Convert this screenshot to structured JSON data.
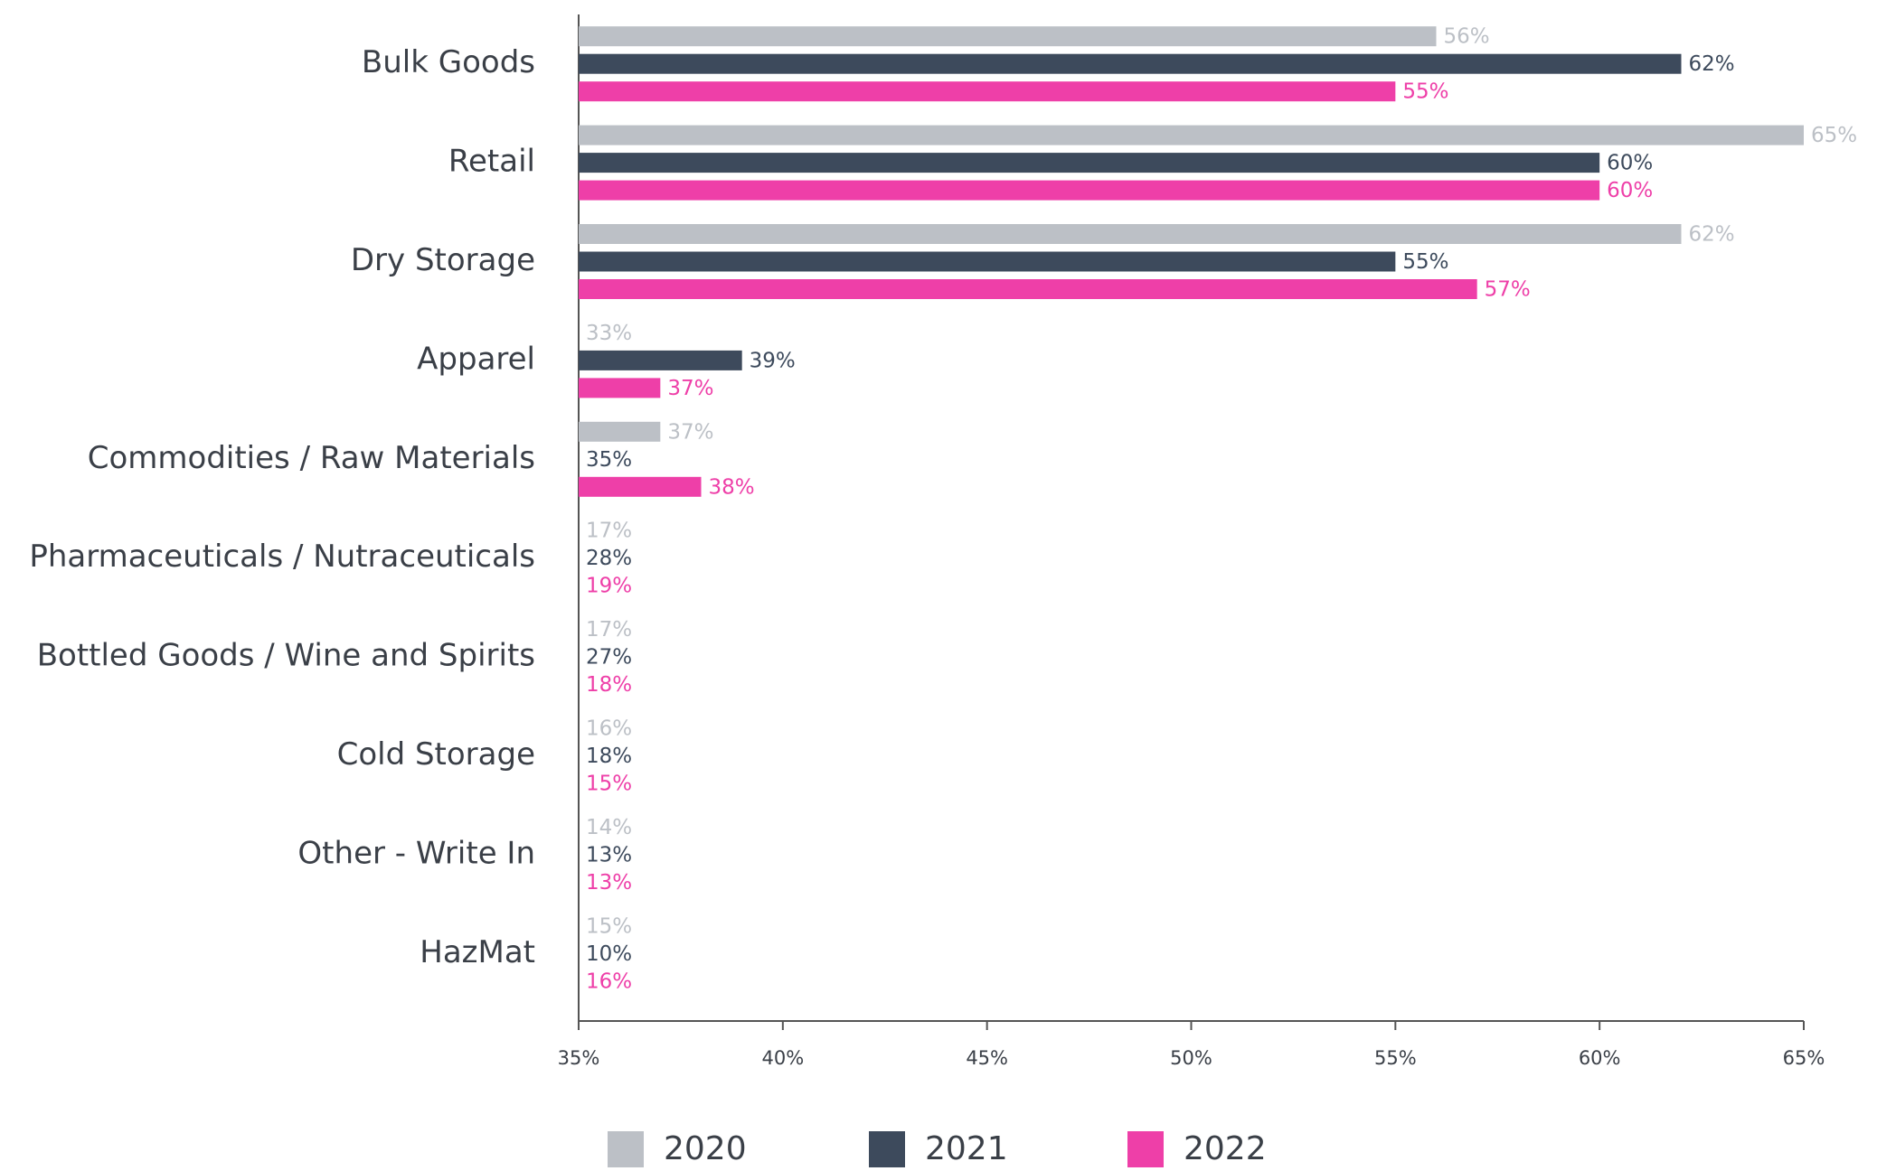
{
  "chart_data": {
    "type": "hbar",
    "categories": [
      "Bulk Goods",
      "Retail",
      "Dry Storage",
      "Apparel",
      "Commodities / Raw Materials",
      "Pharmaceuticals / Nutraceuticals",
      "Bottled Goods / Wine and Spirits",
      "Cold Storage",
      "Other - Write In",
      "HazMat"
    ],
    "series": [
      {
        "name": "2020",
        "color": "#bcc0c6",
        "values": [
          56,
          65,
          62,
          33,
          37,
          17,
          17,
          16,
          14,
          15
        ],
        "value_labels": [
          "56%",
          "65%",
          "62%",
          "33%",
          "37%",
          "17%",
          "17%",
          "16%",
          "14%",
          "15%"
        ]
      },
      {
        "name": "2021",
        "color": "#3d4a5c",
        "values": [
          62,
          60,
          55,
          39,
          35,
          28,
          27,
          18,
          13,
          10
        ],
        "value_labels": [
          "62%",
          "60%",
          "55%",
          "39%",
          "35%",
          "28%",
          "27%",
          "18%",
          "13%",
          "10%"
        ]
      },
      {
        "name": "2022",
        "color": "#ee3fa8",
        "values": [
          55,
          60,
          57,
          37,
          38,
          19,
          18,
          15,
          13,
          16
        ],
        "value_labels": [
          "55%",
          "60%",
          "57%",
          "37%",
          "38%",
          "19%",
          "18%",
          "15%",
          "13%",
          "16%"
        ]
      }
    ],
    "xlim": [
      35,
      65
    ],
    "xticks": [
      {
        "value": 35,
        "label": "35%"
      },
      {
        "value": 40,
        "label": "40%"
      },
      {
        "value": 45,
        "label": "45%"
      },
      {
        "value": 50,
        "label": "50%"
      },
      {
        "value": 55,
        "label": "55%"
      },
      {
        "value": 60,
        "label": "60%"
      },
      {
        "value": 65,
        "label": "65%"
      }
    ],
    "legend": "bottom"
  }
}
